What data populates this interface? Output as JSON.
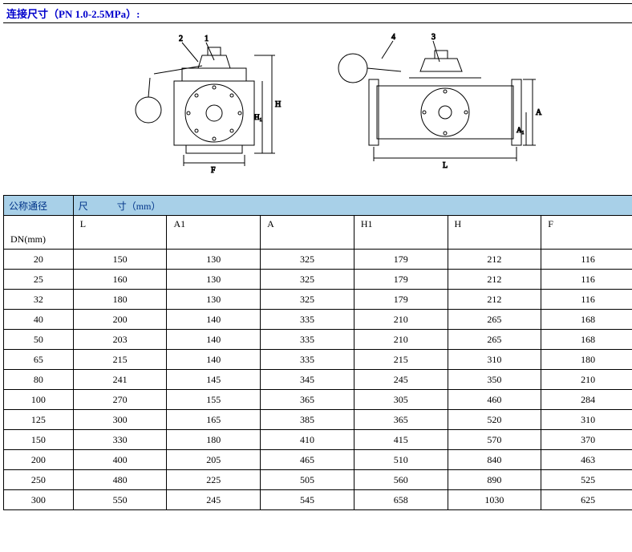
{
  "title": "连接尺寸（PN 1.0-2.5MPa）:",
  "diagram": {
    "callouts_left": [
      "2",
      "1"
    ],
    "callouts_right": [
      "4",
      "3"
    ],
    "dims_left": [
      "F",
      "H",
      "H₁"
    ],
    "dims_right": [
      "L",
      "A",
      "A₁"
    ]
  },
  "table": {
    "header": {
      "col0": "公称通径",
      "col_span": "尺　　　寸（mm）"
    },
    "subheader": {
      "dn": "DN(mm)",
      "cols": [
        "L",
        "A1",
        "A",
        "H1",
        "H",
        "F"
      ]
    },
    "rows": [
      {
        "dn": "20",
        "L": "150",
        "A1": "130",
        "A": "325",
        "H1": "179",
        "H": "212",
        "F": "116"
      },
      {
        "dn": "25",
        "L": "160",
        "A1": "130",
        "A": "325",
        "H1": "179",
        "H": "212",
        "F": "116"
      },
      {
        "dn": "32",
        "L": "180",
        "A1": "130",
        "A": "325",
        "H1": "179",
        "H": "212",
        "F": "116"
      },
      {
        "dn": "40",
        "L": "200",
        "A1": "140",
        "A": "335",
        "H1": "210",
        "H": "265",
        "F": "168"
      },
      {
        "dn": "50",
        "L": "203",
        "A1": "140",
        "A": "335",
        "H1": "210",
        "H": "265",
        "F": "168"
      },
      {
        "dn": "65",
        "L": "215",
        "A1": "140",
        "A": "335",
        "H1": "215",
        "H": "310",
        "F": "180"
      },
      {
        "dn": "80",
        "L": "241",
        "A1": "145",
        "A": "345",
        "H1": "245",
        "H": "350",
        "F": "210"
      },
      {
        "dn": "100",
        "L": "270",
        "A1": "155",
        "A": "365",
        "H1": "305",
        "H": "460",
        "F": "284"
      },
      {
        "dn": "125",
        "L": "300",
        "A1": "165",
        "A": "385",
        "H1": "365",
        "H": "520",
        "F": "310"
      },
      {
        "dn": "150",
        "L": "330",
        "A1": "180",
        "A": "410",
        "H1": "415",
        "H": "570",
        "F": "370"
      },
      {
        "dn": "200",
        "L": "400",
        "A1": "205",
        "A": "465",
        "H1": "510",
        "H": "840",
        "F": "463"
      },
      {
        "dn": "250",
        "L": "480",
        "A1": "225",
        "A": "505",
        "H1": "560",
        "H": "890",
        "F": "525"
      },
      {
        "dn": "300",
        "L": "550",
        "A1": "245",
        "A": "545",
        "H1": "658",
        "H": "1030",
        "F": "625"
      }
    ],
    "colors": {
      "header_bg": "#a8d0e8",
      "header_text": "#003388",
      "title_text": "#0000cc",
      "border": "#000000"
    }
  }
}
